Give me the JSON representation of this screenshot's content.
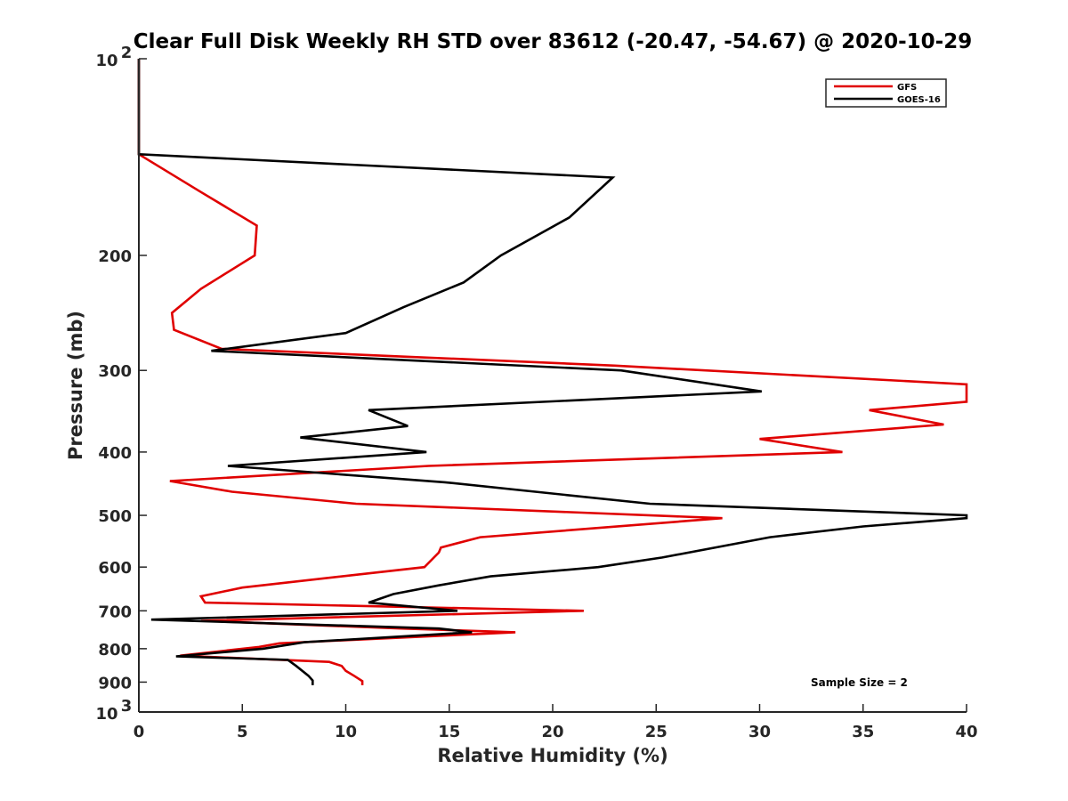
{
  "chart_data": {
    "type": "line",
    "title": "Clear Full Disk Weekly RH STD over 83612 (-20.47, -54.67) @ 2020-10-29",
    "xlabel": "Relative Humidity (%)",
    "ylabel": "Pressure (mb)",
    "xlim": [
      0,
      40
    ],
    "ylim": [
      100,
      1000
    ],
    "y_scale": "log",
    "y_reversed": true,
    "x_ticks": [
      0,
      5,
      10,
      15,
      20,
      25,
      30,
      35,
      40
    ],
    "y_ticks": [
      {
        "value": 100,
        "base": "10",
        "exp": "2",
        "label": ""
      },
      {
        "value": 200,
        "label": "200"
      },
      {
        "value": 300,
        "label": "300"
      },
      {
        "value": 400,
        "label": "400"
      },
      {
        "value": 500,
        "label": "500"
      },
      {
        "value": 600,
        "label": "600"
      },
      {
        "value": 700,
        "label": "700"
      },
      {
        "value": 800,
        "label": "800"
      },
      {
        "value": 900,
        "label": "900"
      },
      {
        "value": 1000,
        "base": "10",
        "exp": "3",
        "label": ""
      }
    ],
    "grid": false,
    "legend_position": "top-right",
    "annotation": "Sample Size = 2",
    "series": [
      {
        "name": "GFS",
        "color": "#e00000",
        "points": [
          [
            0,
            100
          ],
          [
            0,
            140
          ],
          [
            3,
            160
          ],
          [
            5.7,
            180
          ],
          [
            5.6,
            200
          ],
          [
            3,
            225
          ],
          [
            1.6,
            245
          ],
          [
            1.7,
            260
          ],
          [
            4,
            278
          ],
          [
            23,
            295
          ],
          [
            40,
            315
          ],
          [
            40,
            335
          ],
          [
            35.3,
            345
          ],
          [
            38.9,
            363
          ],
          [
            30,
            382
          ],
          [
            34,
            400
          ],
          [
            14,
            420
          ],
          [
            1.5,
            443
          ],
          [
            4.5,
            460
          ],
          [
            10.5,
            480
          ],
          [
            28.2,
            505
          ],
          [
            16.5,
            540
          ],
          [
            14.6,
            560
          ],
          [
            14.5,
            570
          ],
          [
            13.8,
            600
          ],
          [
            5,
            645
          ],
          [
            3,
            665
          ],
          [
            3.2,
            680
          ],
          [
            21.5,
            700
          ],
          [
            3,
            725
          ],
          [
            12.7,
            745
          ],
          [
            18.2,
            755
          ],
          [
            6.8,
            785
          ],
          [
            5.8,
            795
          ],
          [
            2,
            820
          ],
          [
            9.2,
            838
          ],
          [
            9.8,
            850
          ],
          [
            10,
            865
          ],
          [
            10.4,
            880
          ],
          [
            10.8,
            897
          ],
          [
            10.8,
            910
          ]
        ]
      },
      {
        "name": "GOES-16",
        "color": "#000000",
        "points": [
          [
            0,
            100
          ],
          [
            0,
            140
          ],
          [
            22.9,
            152
          ],
          [
            20.8,
            175
          ],
          [
            17.5,
            200
          ],
          [
            15.7,
            220
          ],
          [
            12.8,
            240
          ],
          [
            10,
            263
          ],
          [
            3.5,
            280
          ],
          [
            23.3,
            300
          ],
          [
            30.1,
            323
          ],
          [
            11.1,
            345
          ],
          [
            13,
            365
          ],
          [
            7.8,
            380
          ],
          [
            13.9,
            400
          ],
          [
            4.3,
            420
          ],
          [
            14.8,
            445
          ],
          [
            24.7,
            480
          ],
          [
            40,
            500
          ],
          [
            40,
            505
          ],
          [
            35,
            520
          ],
          [
            30.5,
            540
          ],
          [
            25.3,
            580
          ],
          [
            22.2,
            600
          ],
          [
            17,
            620
          ],
          [
            14.5,
            640
          ],
          [
            12.3,
            660
          ],
          [
            11.1,
            680
          ],
          [
            15.4,
            700
          ],
          [
            0.6,
            722
          ],
          [
            14.5,
            745
          ],
          [
            16.1,
            755
          ],
          [
            8,
            782
          ],
          [
            6,
            800
          ],
          [
            1.8,
            822
          ],
          [
            7.2,
            832
          ],
          [
            7.6,
            850
          ],
          [
            8.2,
            880
          ],
          [
            8.4,
            895
          ],
          [
            8.4,
            910
          ]
        ]
      }
    ]
  }
}
